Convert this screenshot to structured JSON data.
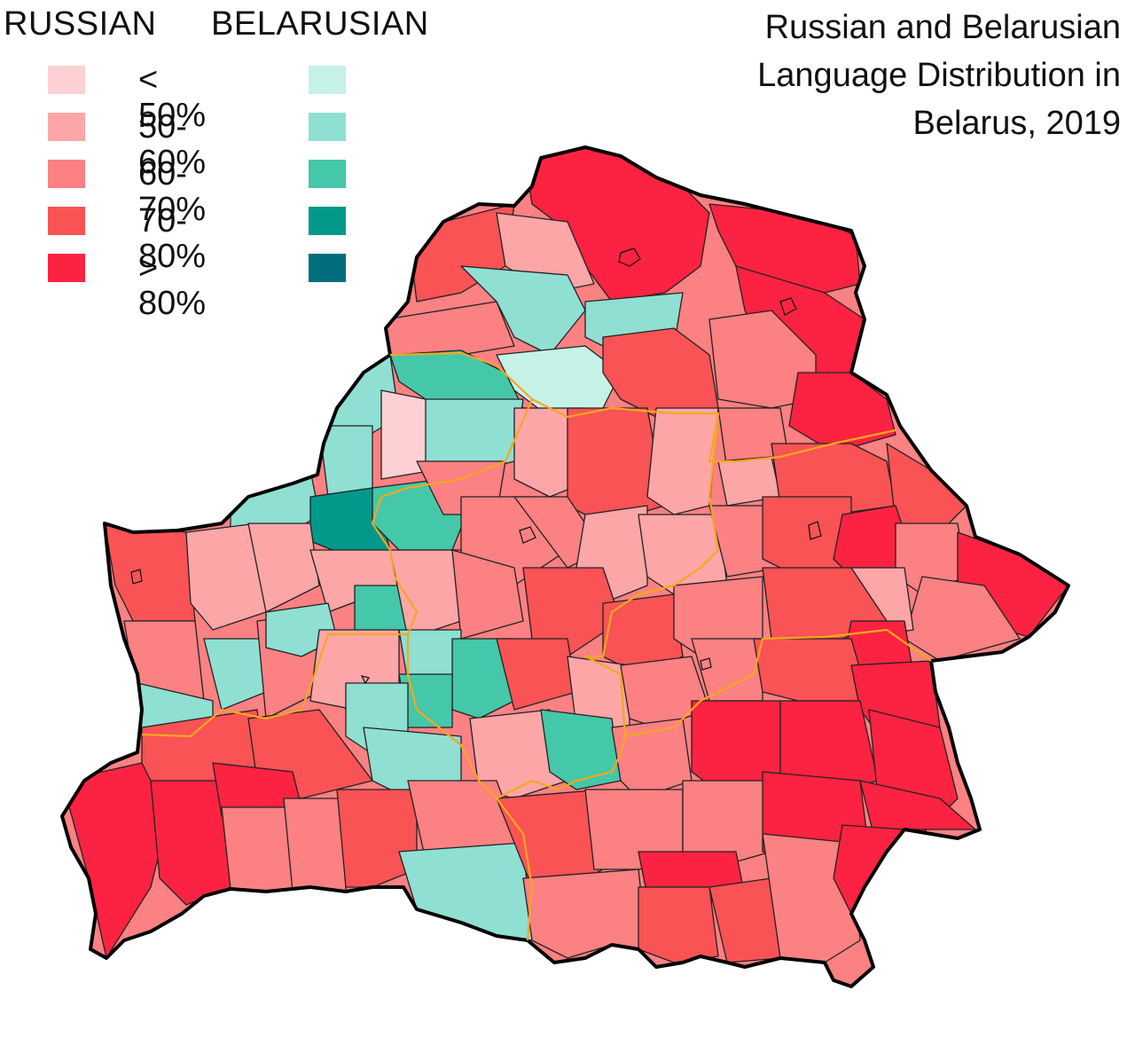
{
  "title_lines": [
    "Russian and Belarusian",
    "Language Distribution in",
    "Belarus, 2019"
  ],
  "legend": {
    "russian_header": "RUSSIAN",
    "belarusian_header": "BELARUSIAN",
    "classes": [
      {
        "label": "< 50%",
        "russian_color": "#fdd0d3",
        "belarusian_color": "#c5f1e7"
      },
      {
        "label": "50-60%",
        "russian_color": "#fca6a8",
        "belarusian_color": "#8fdfd3"
      },
      {
        "label": "60-70%",
        "russian_color": "#fb8183",
        "belarusian_color": "#45c7a9"
      },
      {
        "label": "70-80%",
        "russian_color": "#f95355",
        "belarusian_color": "#00998a"
      },
      {
        "label": "> 80%",
        "russian_color": "#fb2341",
        "belarusian_color": "#006f7b"
      }
    ]
  },
  "colors": {
    "outline": "#000000",
    "district_border": "#222222",
    "region_border": "#f3a81c"
  }
}
